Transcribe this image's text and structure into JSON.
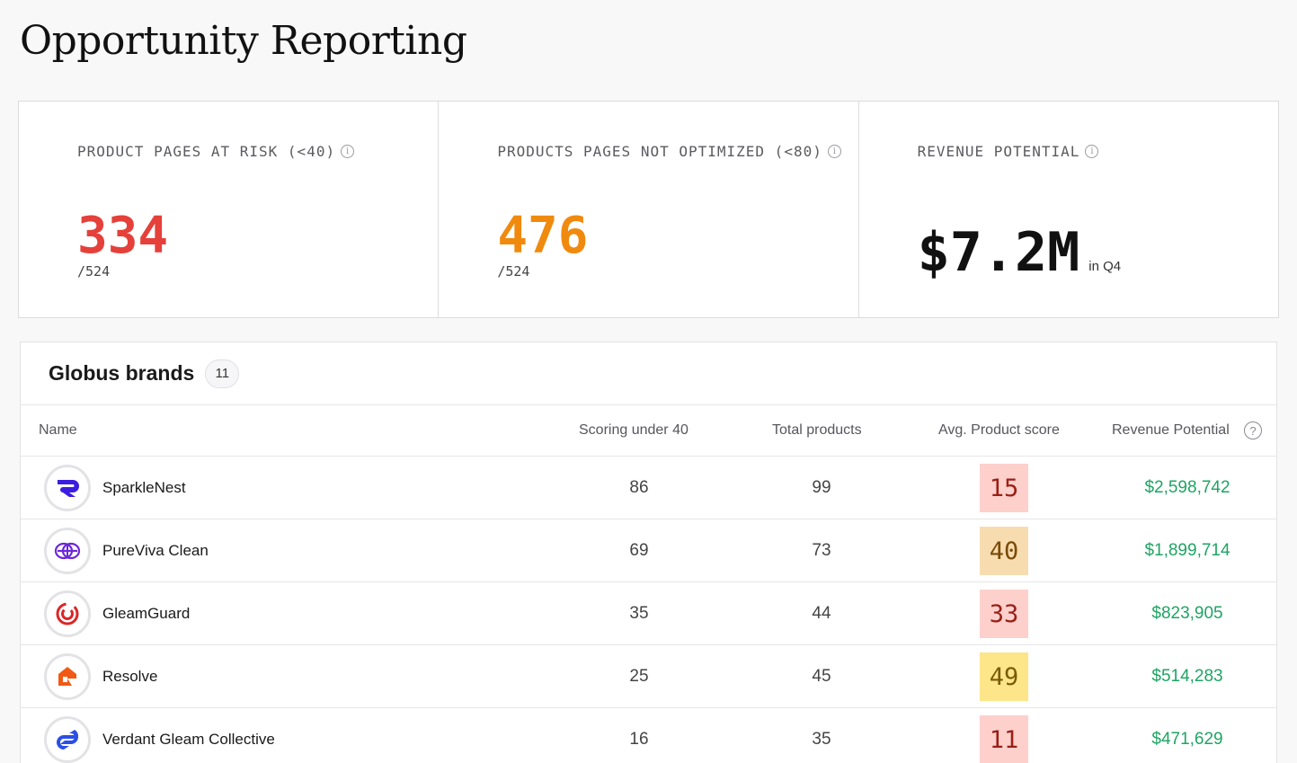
{
  "page": {
    "title": "Opportunity Reporting"
  },
  "kpis": [
    {
      "label": "PRODUCT PAGES AT RISK (<40)",
      "value": "334",
      "sub": "/524",
      "color": "#e5403a"
    },
    {
      "label": "PRODUCTS PAGES NOT OPTIMIZED (<80)",
      "value": "476",
      "sub": "/524",
      "color": "#f08a0e"
    },
    {
      "label": "REVENUE POTENTIAL",
      "value": "$7.2M",
      "suffix": "in Q4",
      "color": "#111111"
    }
  ],
  "info_icon_glyph": "i",
  "table": {
    "title": "Globus brands",
    "count": "11",
    "columns": {
      "name": "Name",
      "scoring": "Scoring under 40",
      "total": "Total products",
      "avg": "Avg. Product score",
      "revenue": "Revenue Potential",
      "help_glyph": "?"
    },
    "rows": [
      {
        "name": "SparkleNest",
        "scoring": "86",
        "total": "99",
        "score": "15",
        "score_bg": "#fdd0cc",
        "score_fg": "#9a1f16",
        "revenue": "$2,598,742",
        "logo": "sparklenest-logo-icon",
        "logo_color": "#3b1ee0"
      },
      {
        "name": "PureViva Clean",
        "scoring": "69",
        "total": "73",
        "score": "40",
        "score_bg": "#f7dcb0",
        "score_fg": "#7a4a05",
        "revenue": "$1,899,714",
        "logo": "pureviva-logo-icon",
        "logo_color": "#6d28d9"
      },
      {
        "name": "GleamGuard",
        "scoring": "35",
        "total": "44",
        "score": "33",
        "score_bg": "#fdd0cc",
        "score_fg": "#9a1f16",
        "revenue": "$823,905",
        "logo": "gleamguard-logo-icon",
        "logo_color": "#dc2626"
      },
      {
        "name": "Resolve",
        "scoring": "25",
        "total": "45",
        "score": "49",
        "score_bg": "#fde58a",
        "score_fg": "#7a5a05",
        "revenue": "$514,283",
        "logo": "resolve-logo-icon",
        "logo_color": "#f05a14"
      },
      {
        "name": "Verdant Gleam Collective",
        "scoring": "16",
        "total": "35",
        "score": "11",
        "score_bg": "#fdd0cc",
        "score_fg": "#9a1f16",
        "revenue": "$471,629",
        "logo": "verdant-logo-icon",
        "logo_color": "#2b4fe6"
      }
    ]
  }
}
